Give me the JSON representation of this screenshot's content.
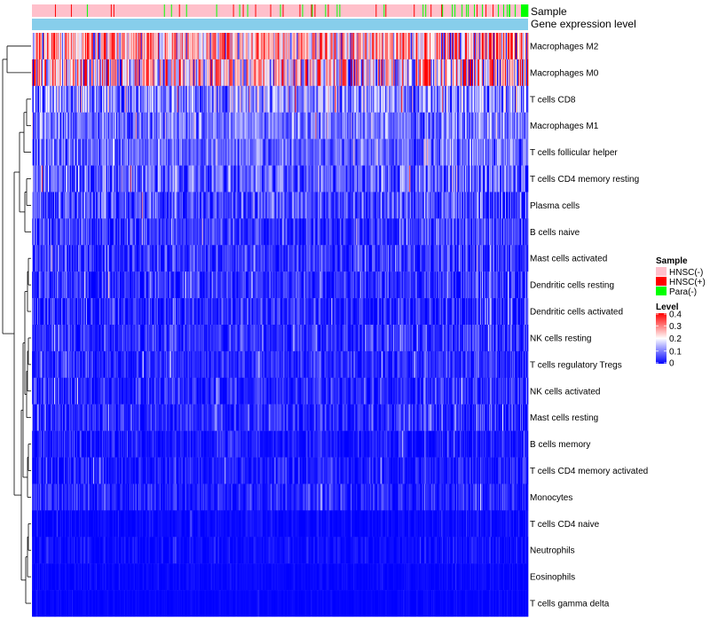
{
  "chart_data": {
    "type": "heatmap",
    "title": "",
    "annotation_tracks": [
      {
        "name": "Sample",
        "label": "Sample"
      },
      {
        "name": "Gene expression level",
        "label": "Gene expression level"
      }
    ],
    "rows": [
      {
        "label": "Macrophages M2",
        "mean": 0.26,
        "spread": 0.12
      },
      {
        "label": "Macrophages M0",
        "mean": 0.22,
        "spread": 0.16
      },
      {
        "label": "T cells CD8",
        "mean": 0.11,
        "spread": 0.08
      },
      {
        "label": "Macrophages M1",
        "mean": 0.09,
        "spread": 0.06
      },
      {
        "label": "T cells follicular helper",
        "mean": 0.08,
        "spread": 0.05
      },
      {
        "label": "T cells CD4 memory resting",
        "mean": 0.07,
        "spread": 0.07
      },
      {
        "label": "Plasma cells",
        "mean": 0.05,
        "spread": 0.06
      },
      {
        "label": "B cells naive",
        "mean": 0.04,
        "spread": 0.05
      },
      {
        "label": "Mast cells activated",
        "mean": 0.035,
        "spread": 0.05
      },
      {
        "label": "Dendritic cells resting",
        "mean": 0.035,
        "spread": 0.05
      },
      {
        "label": "Dendritic cells activated",
        "mean": 0.03,
        "spread": 0.05
      },
      {
        "label": "NK cells resting",
        "mean": 0.035,
        "spread": 0.045
      },
      {
        "label": "T cells regulatory  Tregs",
        "mean": 0.03,
        "spread": 0.04
      },
      {
        "label": "NK cells activated",
        "mean": 0.03,
        "spread": 0.04
      },
      {
        "label": "Mast cells resting",
        "mean": 0.03,
        "spread": 0.045
      },
      {
        "label": "B cells memory",
        "mean": 0.015,
        "spread": 0.03
      },
      {
        "label": "T cells CD4 memory activated",
        "mean": 0.02,
        "spread": 0.035
      },
      {
        "label": "Monocytes",
        "mean": 0.025,
        "spread": 0.035
      },
      {
        "label": "T cells CD4 naive",
        "mean": 0.005,
        "spread": 0.015
      },
      {
        "label": "Neutrophils",
        "mean": 0.008,
        "spread": 0.018
      },
      {
        "label": "Eosinophils",
        "mean": 0.004,
        "spread": 0.01
      },
      {
        "label": "T cells gamma delta",
        "mean": 0.002,
        "spread": 0.008
      }
    ],
    "n_samples": 560,
    "sample_groups": {
      "HNSC(-)": 0.92,
      "HNSC(+)": 0.05,
      "Para(-)": 0.03
    },
    "legend_sample": {
      "title": "Sample",
      "entries": [
        {
          "label": "HNSC(-)",
          "color": "#ffc0cb"
        },
        {
          "label": "HNSC(+)",
          "color": "#ff0000"
        },
        {
          "label": "Para(-)",
          "color": "#00ff00"
        }
      ]
    },
    "legend_level": {
      "title": "Level",
      "ticks": [
        "0.4",
        "0.3",
        "0.2",
        "0.1",
        "0"
      ],
      "tick_values": [
        0.4,
        0.3,
        0.2,
        0.1,
        0
      ],
      "range": [
        0,
        0.4
      ]
    },
    "colors": {
      "low": "#0000ff",
      "mid": "#ffffff",
      "high": "#ff0000",
      "expression_track": "#87ceeb"
    }
  }
}
